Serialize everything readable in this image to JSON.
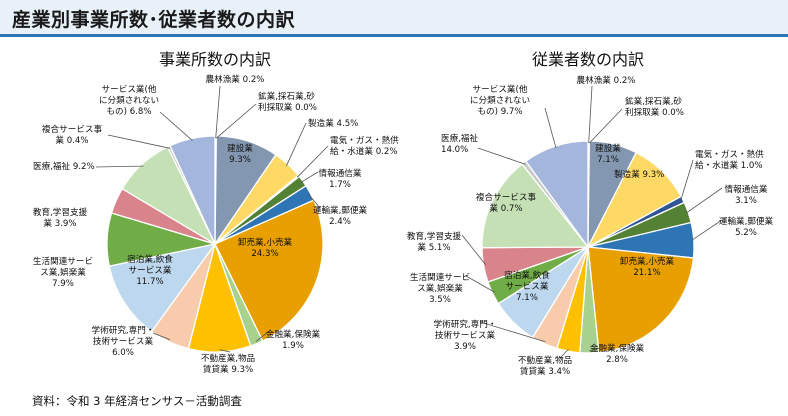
{
  "header": {
    "title": "産業別事業所数･従業者数の内訳"
  },
  "source": "資料：令和 3 年経済センサス－活動調査",
  "chart_data": [
    {
      "type": "pie",
      "title": "事業所数の内訳",
      "slices": [
        {
          "name": "農林漁業",
          "value": 0.2,
          "color": "#4472c4",
          "label": [
            "農林漁業 0.2%"
          ]
        },
        {
          "name": "建設業",
          "value": 9.3,
          "color": "#8497b0",
          "label": [
            "建設業",
            "9.3%"
          ]
        },
        {
          "name": "製造業",
          "value": 4.5,
          "color": "#ffd966",
          "label": [
            "製造業 4.5%"
          ]
        },
        {
          "name": "電気・ガス・熱供給・水道業",
          "value": 0.2,
          "color": "#ed7d31",
          "label": [
            "電気・ガス・熱供",
            "給・水道業 0.2%"
          ]
        },
        {
          "name": "情報通信業",
          "value": 1.7,
          "color": "#548235",
          "label": [
            "情報通信業",
            "1.7%"
          ]
        },
        {
          "name": "運輸業,郵便業",
          "value": 2.4,
          "color": "#2e75b6",
          "label": [
            "運輸業,郵便業",
            "2.4%"
          ]
        },
        {
          "name": "卸売業,小売業",
          "value": 24.3,
          "color": "#e7a000",
          "label": [
            "卸売業,小売業",
            "24.3%"
          ]
        },
        {
          "name": "金融業,保険業",
          "value": 1.9,
          "color": "#a9d18e",
          "label": [
            "金融業,保険業",
            "1.9%"
          ]
        },
        {
          "name": "不動産業,物品賃貸業",
          "value": 9.3,
          "color": "#ffc000",
          "label": [
            "不動産業,物品",
            "賃貸業 9.3%"
          ]
        },
        {
          "name": "学術研究,専門・技術サービス業",
          "value": 6.0,
          "color": "#f8cbad",
          "label": [
            "学術研究,専門・",
            "技術サービス業",
            "6.0%"
          ]
        },
        {
          "name": "宿泊業,飲食サービス業",
          "value": 11.7,
          "color": "#bdd7ee",
          "label": [
            "宿泊業,飲食",
            "サービス業",
            "11.7%"
          ]
        },
        {
          "name": "生活関連サービス業,娯楽業",
          "value": 7.9,
          "color": "#70ad47",
          "label": [
            "生活関連サービ",
            "ス業,娯楽業",
            "7.9%"
          ]
        },
        {
          "name": "教育,学習支援業",
          "value": 3.9,
          "color": "#d9848a",
          "label": [
            "教育,学習支援",
            "業 3.9%"
          ]
        },
        {
          "name": "医療,福祉",
          "value": 9.2,
          "color": "#c5e0b4",
          "label": [
            "医療,福祉 9.2%"
          ]
        },
        {
          "name": "複合サービス事業",
          "value": 0.4,
          "color": "#c9c9c9",
          "label": [
            "複合サービス事",
            "業 0.4%"
          ]
        },
        {
          "name": "サービス業(他に分類されないもの)",
          "value": 6.8,
          "color": "#a5b6dc",
          "label": [
            "サービス業(他",
            "に分類されない",
            "もの) 6.8%"
          ]
        },
        {
          "name": "鉱業,採石業,砂利採取業",
          "value": 0.0,
          "color": "#7f7f7f",
          "label": [
            "鉱業,採石業,砂",
            "利採取業 0.0%"
          ]
        }
      ]
    },
    {
      "type": "pie",
      "title": "従業者数の内訳",
      "slices": [
        {
          "name": "農林漁業",
          "value": 0.2,
          "color": "#4472c4",
          "label": [
            "農林漁業 0.2%"
          ]
        },
        {
          "name": "建設業",
          "value": 7.1,
          "color": "#8497b0",
          "label": [
            "建設業",
            "7.1%"
          ]
        },
        {
          "name": "製造業",
          "value": 9.3,
          "color": "#ffd966",
          "label": [
            "製造業 9.3%"
          ]
        },
        {
          "name": "電気・ガス・熱供給・水道業",
          "value": 1.0,
          "color": "#2f5597",
          "label": [
            "電気・ガス・熱供",
            "給・水道業 1.0%"
          ]
        },
        {
          "name": "情報通信業",
          "value": 3.1,
          "color": "#548235",
          "label": [
            "情報通信業",
            "3.1%"
          ]
        },
        {
          "name": "運輸業,郵便業",
          "value": 5.2,
          "color": "#2e75b6",
          "label": [
            "運輸業,郵便業",
            "5.2%"
          ]
        },
        {
          "name": "卸売業,小売業",
          "value": 21.1,
          "color": "#e7a000",
          "label": [
            "卸売業,小売業",
            "21.1%"
          ]
        },
        {
          "name": "金融業,保険業",
          "value": 2.8,
          "color": "#a9d18e",
          "label": [
            "金融業,保険業",
            "2.8%"
          ]
        },
        {
          "name": "不動産業,物品賃貸業",
          "value": 3.4,
          "color": "#ffc000",
          "label": [
            "不動産業,物品",
            "賃貸業 3.4%"
          ]
        },
        {
          "name": "学術研究,専門・技術サービス業",
          "value": 3.9,
          "color": "#f8cbad",
          "label": [
            "学術研究,専門・",
            "技術サービス業",
            "3.9%"
          ]
        },
        {
          "name": "宿泊業,飲食サービス業",
          "value": 7.1,
          "color": "#bdd7ee",
          "label": [
            "宿泊業,飲食",
            "サービス業",
            "7.1%"
          ]
        },
        {
          "name": "生活関連サービス業,娯楽業",
          "value": 3.5,
          "color": "#70ad47",
          "label": [
            "生活関連サービ",
            "ス業,娯楽業",
            "3.5%"
          ]
        },
        {
          "name": "教育,学習支援業",
          "value": 5.1,
          "color": "#d9848a",
          "label": [
            "教育,学習支援",
            "業 5.1%"
          ]
        },
        {
          "name": "医療,福祉",
          "value": 14.0,
          "color": "#c5e0b4",
          "label": [
            "医療,福祉",
            "14.0%"
          ]
        },
        {
          "name": "複合サービス事業",
          "value": 0.7,
          "color": "#c9c9c9",
          "label": [
            "複合サービス事",
            "業 0.7%"
          ]
        },
        {
          "name": "サービス業(他に分類されないもの)",
          "value": 9.7,
          "color": "#a5b6dc",
          "label": [
            "サービス業(他",
            "に分類されない",
            "もの) 9.7%"
          ]
        },
        {
          "name": "鉱業,採石業,砂利採取業",
          "value": 0.0,
          "color": "#7f7f7f",
          "label": [
            "鉱業,採石業,砂",
            "利採取業 0.0%"
          ]
        }
      ]
    }
  ]
}
